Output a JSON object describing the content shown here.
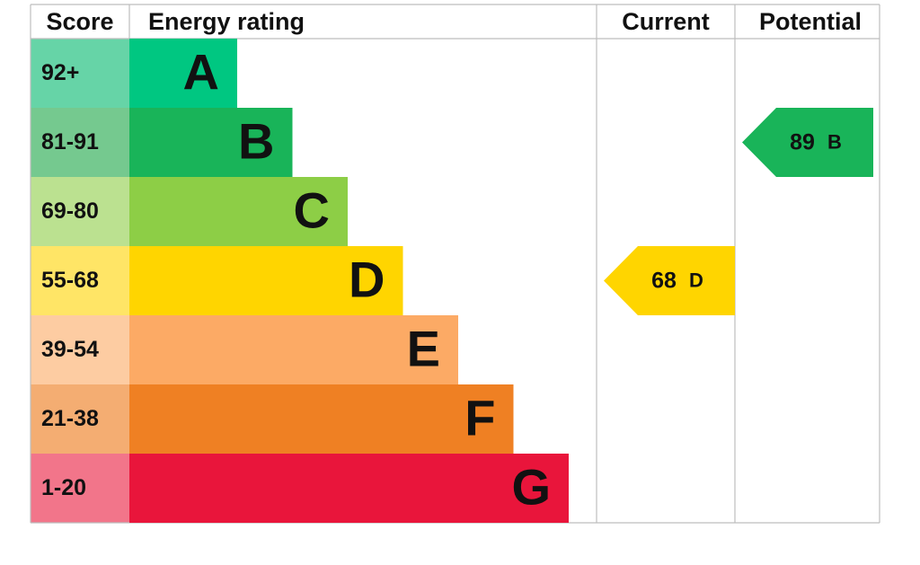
{
  "headers": [
    "Score",
    "Energy rating",
    "Current",
    "Potential"
  ],
  "bands": [
    {
      "score": "92+",
      "letter": "A",
      "color": "#00c781",
      "score_color": "#66d4a7"
    },
    {
      "score": "81-91",
      "letter": "B",
      "color": "#19b459",
      "score_color": "#75c98f"
    },
    {
      "score": "69-80",
      "letter": "C",
      "color": "#8dce46",
      "score_color": "#bbe190"
    },
    {
      "score": "55-68",
      "letter": "D",
      "color": "#ffd500",
      "score_color": "#ffe566"
    },
    {
      "score": "39-54",
      "letter": "E",
      "color": "#fcaa65",
      "score_color": "#fdcca2"
    },
    {
      "score": "21-38",
      "letter": "F",
      "color": "#ef8023",
      "score_color": "#f4ad72"
    },
    {
      "score": "1-20",
      "letter": "G",
      "color": "#e9153b",
      "score_color": "#f2758a"
    }
  ],
  "current": {
    "value": 68,
    "band": "D"
  },
  "potential": {
    "value": 89,
    "band": "B"
  }
}
